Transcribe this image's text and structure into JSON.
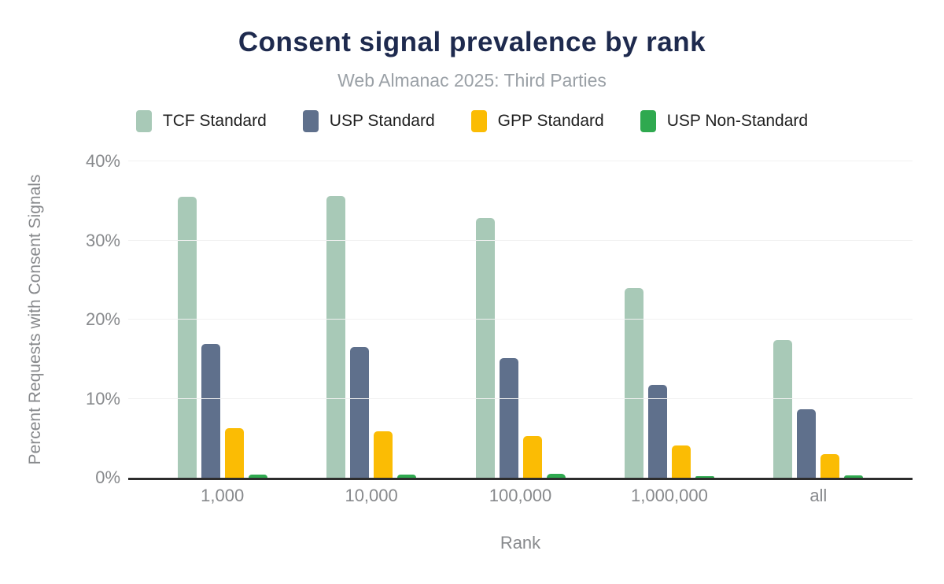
{
  "chart_data": {
    "type": "bar",
    "title": "Consent signal prevalence by rank",
    "subtitle": "Web Almanac 2025: Third Parties",
    "xlabel": "Rank",
    "ylabel": "Percent Requests with Consent Signals",
    "categories": [
      "1,000",
      "10,000",
      "100,000",
      "1,000,000",
      "all"
    ],
    "series": [
      {
        "name": "TCF Standard",
        "color": "#a8c9b7",
        "values": [
          35.5,
          35.6,
          32.8,
          24.0,
          17.4
        ]
      },
      {
        "name": "USP Standard",
        "color": "#5f708c",
        "values": [
          16.9,
          16.5,
          15.1,
          11.7,
          8.7
        ]
      },
      {
        "name": "GPP Standard",
        "color": "#fbbc04",
        "values": [
          6.3,
          5.9,
          5.3,
          4.1,
          3.0
        ]
      },
      {
        "name": "USP Non-Standard",
        "color": "#2fa94f",
        "values": [
          0.4,
          0.4,
          0.5,
          0.2,
          0.3
        ]
      }
    ],
    "ylim": [
      0,
      40
    ],
    "yticks": [
      {
        "v": 0,
        "label": "0%"
      },
      {
        "v": 10,
        "label": "10%"
      },
      {
        "v": 20,
        "label": "20%"
      },
      {
        "v": 30,
        "label": "30%"
      },
      {
        "v": 40,
        "label": "40%"
      }
    ],
    "grid": true,
    "legend_position": "top"
  },
  "colors": {
    "title": "#1e2a4e",
    "subtitle": "#9aa0a6",
    "axis_text": "#87898c",
    "gridline": "#f1f1f1",
    "axis_line": "#2d2d2d",
    "legend_text": "#1f1f1f",
    "background": "#ffffff"
  }
}
